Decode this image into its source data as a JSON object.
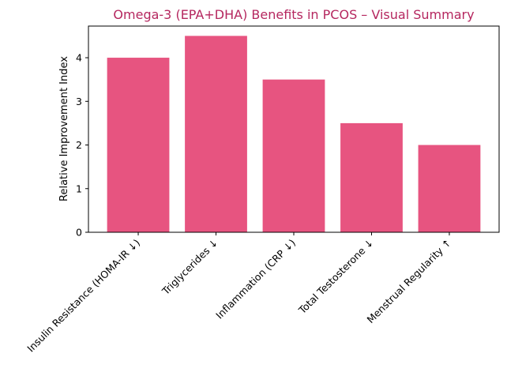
{
  "chart_data": {
    "type": "bar",
    "title": "Omega-3 (EPA+DHA) Benefits in PCOS – Visual Summary",
    "xlabel": "",
    "ylabel": "Relative Improvement Index",
    "categories": [
      "Insulin Resistance (HOMA-IR ↓)",
      "Triglycerides ↓",
      "Inflammation (CRP ↓)",
      "Total Testosterone ↓",
      "Menstrual Regularity ↑"
    ],
    "values": [
      4,
      4.5,
      3.5,
      2.5,
      2
    ],
    "ylim": [
      0,
      4.725
    ],
    "yticks": [
      "0",
      "1",
      "2",
      "3",
      "4"
    ],
    "grid": false,
    "colors": {
      "bar": "#e75480",
      "title": "#b5275f"
    }
  }
}
